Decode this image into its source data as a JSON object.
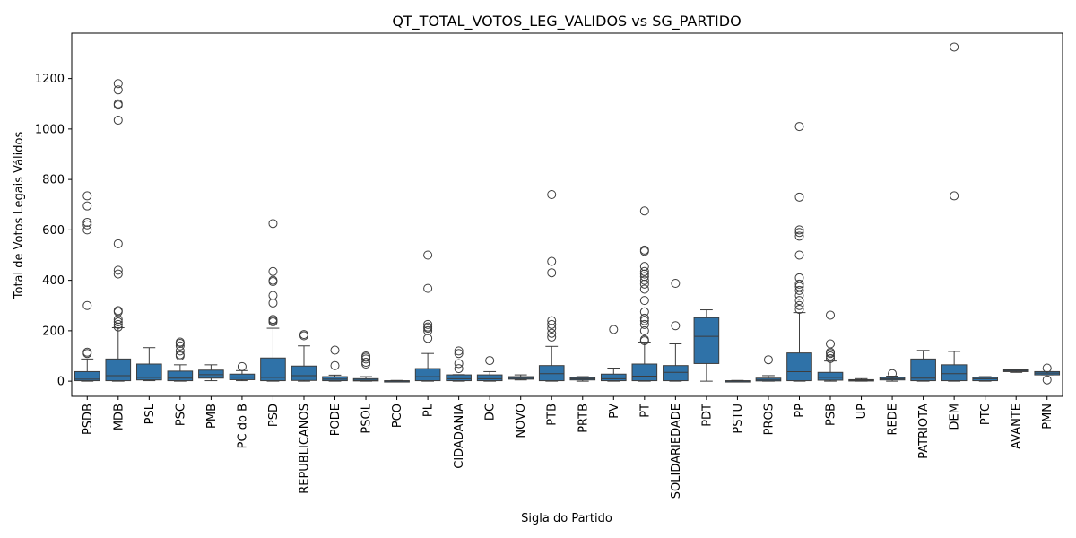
{
  "chart_data": {
    "type": "box",
    "title": "QT_TOTAL_VOTOS_LEG_VALIDOS vs SG_PARTIDO",
    "xlabel": "Sigla do Partido",
    "ylabel": "Total de Votos Legais Válidos",
    "ylim": [
      -60,
      1380
    ],
    "yticks": [
      0,
      200,
      400,
      600,
      800,
      1000,
      1200
    ],
    "grid": false,
    "box_color": "#2f72a8",
    "categories": [
      "PSDB",
      "MDB",
      "PSL",
      "PSC",
      "PMB",
      "PC do B",
      "PSD",
      "REPUBLICANOS",
      "PODE",
      "PSOL",
      "PCO",
      "PL",
      "CIDADANIA",
      "DC",
      "NOVO",
      "PTB",
      "PRTB",
      "PV",
      "PT",
      "SOLIDARIEDADE",
      "PDT",
      "PSTU",
      "PROS",
      "PP",
      "PSB",
      "UP",
      "REDE",
      "PATRIOTA",
      "DEM",
      "PTC",
      "AVANTE",
      "PMN"
    ],
    "boxes": [
      {
        "min": 0,
        "q1": 2,
        "median": 8,
        "q3": 38,
        "max": 88,
        "outliers": [
          110,
          115,
          300,
          600,
          620,
          630,
          695,
          735
        ]
      },
      {
        "min": 0,
        "q1": 2,
        "median": 22,
        "q3": 88,
        "max": 212,
        "outliers": [
          215,
          225,
          235,
          245,
          275,
          280,
          425,
          440,
          545,
          1035,
          1095,
          1100,
          1155,
          1180
        ]
      },
      {
        "min": 2,
        "q1": 5,
        "median": 15,
        "q3": 68,
        "max": 133,
        "outliers": []
      },
      {
        "min": 0,
        "q1": 2,
        "median": 12,
        "q3": 40,
        "max": 65,
        "outliers": [
          100,
          105,
          120,
          140,
          150,
          155
        ]
      },
      {
        "min": 2,
        "q1": 12,
        "median": 26,
        "q3": 44,
        "max": 65,
        "outliers": []
      },
      {
        "min": 2,
        "q1": 6,
        "median": 16,
        "q3": 28,
        "max": 42,
        "outliers": [
          58
        ]
      },
      {
        "min": 0,
        "q1": 2,
        "median": 15,
        "q3": 92,
        "max": 210,
        "outliers": [
          235,
          240,
          245,
          310,
          340,
          395,
          400,
          435,
          625
        ]
      },
      {
        "min": 0,
        "q1": 3,
        "median": 22,
        "q3": 60,
        "max": 140,
        "outliers": [
          180,
          185
        ]
      },
      {
        "min": 0,
        "q1": 2,
        "median": 8,
        "q3": 18,
        "max": 24,
        "outliers": [
          62,
          123
        ]
      },
      {
        "min": 0,
        "q1": 1,
        "median": 4,
        "q3": 10,
        "max": 18,
        "outliers": [
          68,
          75,
          88,
          95,
          100
        ]
      },
      {
        "min": 0,
        "q1": 0,
        "median": 1,
        "q3": 2,
        "max": 3,
        "outliers": []
      },
      {
        "min": 0,
        "q1": 2,
        "median": 18,
        "q3": 50,
        "max": 110,
        "outliers": [
          170,
          200,
          210,
          215,
          225,
          368,
          500
        ]
      },
      {
        "min": 0,
        "q1": 2,
        "median": 10,
        "q3": 25,
        "max": 26,
        "outliers": [
          50,
          70,
          110,
          120
        ]
      },
      {
        "min": 0,
        "q1": 2,
        "median": 10,
        "q3": 25,
        "max": 38,
        "outliers": [
          82
        ]
      },
      {
        "min": 5,
        "q1": 8,
        "median": 12,
        "q3": 18,
        "max": 25,
        "outliers": []
      },
      {
        "min": 0,
        "q1": 2,
        "median": 30,
        "q3": 62,
        "max": 138,
        "outliers": [
          175,
          190,
          210,
          225,
          240,
          430,
          475,
          740
        ]
      },
      {
        "min": 0,
        "q1": 5,
        "median": 10,
        "q3": 14,
        "max": 18,
        "outliers": []
      },
      {
        "min": 0,
        "q1": 2,
        "median": 10,
        "q3": 28,
        "max": 52,
        "outliers": [
          205
        ]
      },
      {
        "min": 0,
        "q1": 2,
        "median": 20,
        "q3": 68,
        "max": 155,
        "outliers": [
          160,
          165,
          200,
          225,
          240,
          250,
          275,
          320,
          365,
          385,
          400,
          415,
          425,
          435,
          455,
          515,
          520,
          675
        ]
      },
      {
        "min": 0,
        "q1": 2,
        "median": 35,
        "q3": 62,
        "max": 148,
        "outliers": [
          220,
          388
        ]
      },
      {
        "min": 0,
        "q1": 70,
        "median": 178,
        "q3": 252,
        "max": 283,
        "outliers": []
      },
      {
        "min": 0,
        "q1": 0,
        "median": 1,
        "q3": 2,
        "max": 3,
        "outliers": []
      },
      {
        "min": 0,
        "q1": 1,
        "median": 5,
        "q3": 12,
        "max": 22,
        "outliers": [
          85
        ]
      },
      {
        "min": 0,
        "q1": 2,
        "median": 38,
        "q3": 112,
        "max": 272,
        "outliers": [
          285,
          300,
          320,
          340,
          360,
          375,
          385,
          410,
          500,
          575,
          590,
          600,
          730,
          1010
        ]
      },
      {
        "min": 0,
        "q1": 4,
        "median": 15,
        "q3": 35,
        "max": 80,
        "outliers": [
          90,
          100,
          110,
          115,
          148,
          262
        ]
      },
      {
        "min": 0,
        "q1": 2,
        "median": 4,
        "q3": 6,
        "max": 10,
        "outliers": []
      },
      {
        "min": 0,
        "q1": 5,
        "median": 10,
        "q3": 15,
        "max": 20,
        "outliers": [
          30
        ]
      },
      {
        "min": 0,
        "q1": 2,
        "median": 12,
        "q3": 88,
        "max": 122,
        "outliers": []
      },
      {
        "min": 0,
        "q1": 2,
        "median": 30,
        "q3": 65,
        "max": 118,
        "outliers": [
          735,
          1325
        ]
      },
      {
        "min": 0,
        "q1": 2,
        "median": 10,
        "q3": 15,
        "max": 18,
        "outliers": []
      },
      {
        "min": 35,
        "q1": 38,
        "median": 42,
        "q3": 45,
        "max": 45,
        "outliers": []
      },
      {
        "min": 25,
        "q1": 25,
        "median": 32,
        "q3": 38,
        "max": 38,
        "outliers": [
          5,
          52
        ]
      }
    ]
  }
}
